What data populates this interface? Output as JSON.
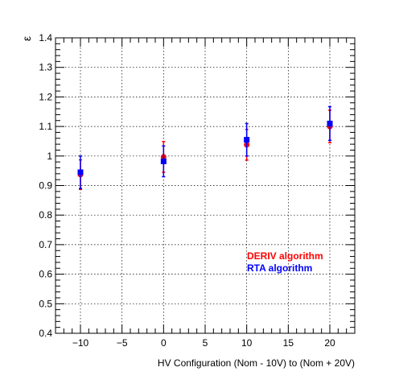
{
  "chart_data": {
    "type": "scatter",
    "title": "",
    "xlabel": "HV Configuration (Nom - 10V) to (Nom + 20V)",
    "ylabel": "ε",
    "xlim": [
      -13,
      23
    ],
    "ylim": [
      0.4,
      1.4
    ],
    "x_ticks": [
      -10,
      -5,
      0,
      5,
      10,
      15,
      20
    ],
    "x_tick_labels": [
      "−10",
      "−5",
      "0",
      "5",
      "10",
      "15",
      "20"
    ],
    "y_ticks": [
      0.4,
      0.5,
      0.6,
      0.7,
      0.8,
      0.9,
      1.0,
      1.1,
      1.2,
      1.3,
      1.4
    ],
    "y_tick_labels": [
      "0.4",
      "0.5",
      "0.6",
      "0.7",
      "0.8",
      "0.9",
      "1",
      "1.1",
      "1.2",
      "1.3",
      "1.4"
    ],
    "grid": true,
    "legend_position": "lower-right",
    "series": [
      {
        "name": "DERIV algorithm",
        "color": "#ff0000",
        "marker": "circle",
        "x": [
          -10,
          0,
          10,
          20
        ],
        "y": [
          0.937,
          0.997,
          1.038,
          1.1
        ],
        "err": [
          0.05,
          0.052,
          0.052,
          0.055
        ]
      },
      {
        "name": "RTA algorithm",
        "color": "#0000ff",
        "marker": "square",
        "x": [
          -10,
          0,
          10,
          20
        ],
        "y": [
          0.945,
          0.982,
          1.055,
          1.11
        ],
        "err": [
          0.055,
          0.052,
          0.055,
          0.057
        ]
      }
    ]
  }
}
